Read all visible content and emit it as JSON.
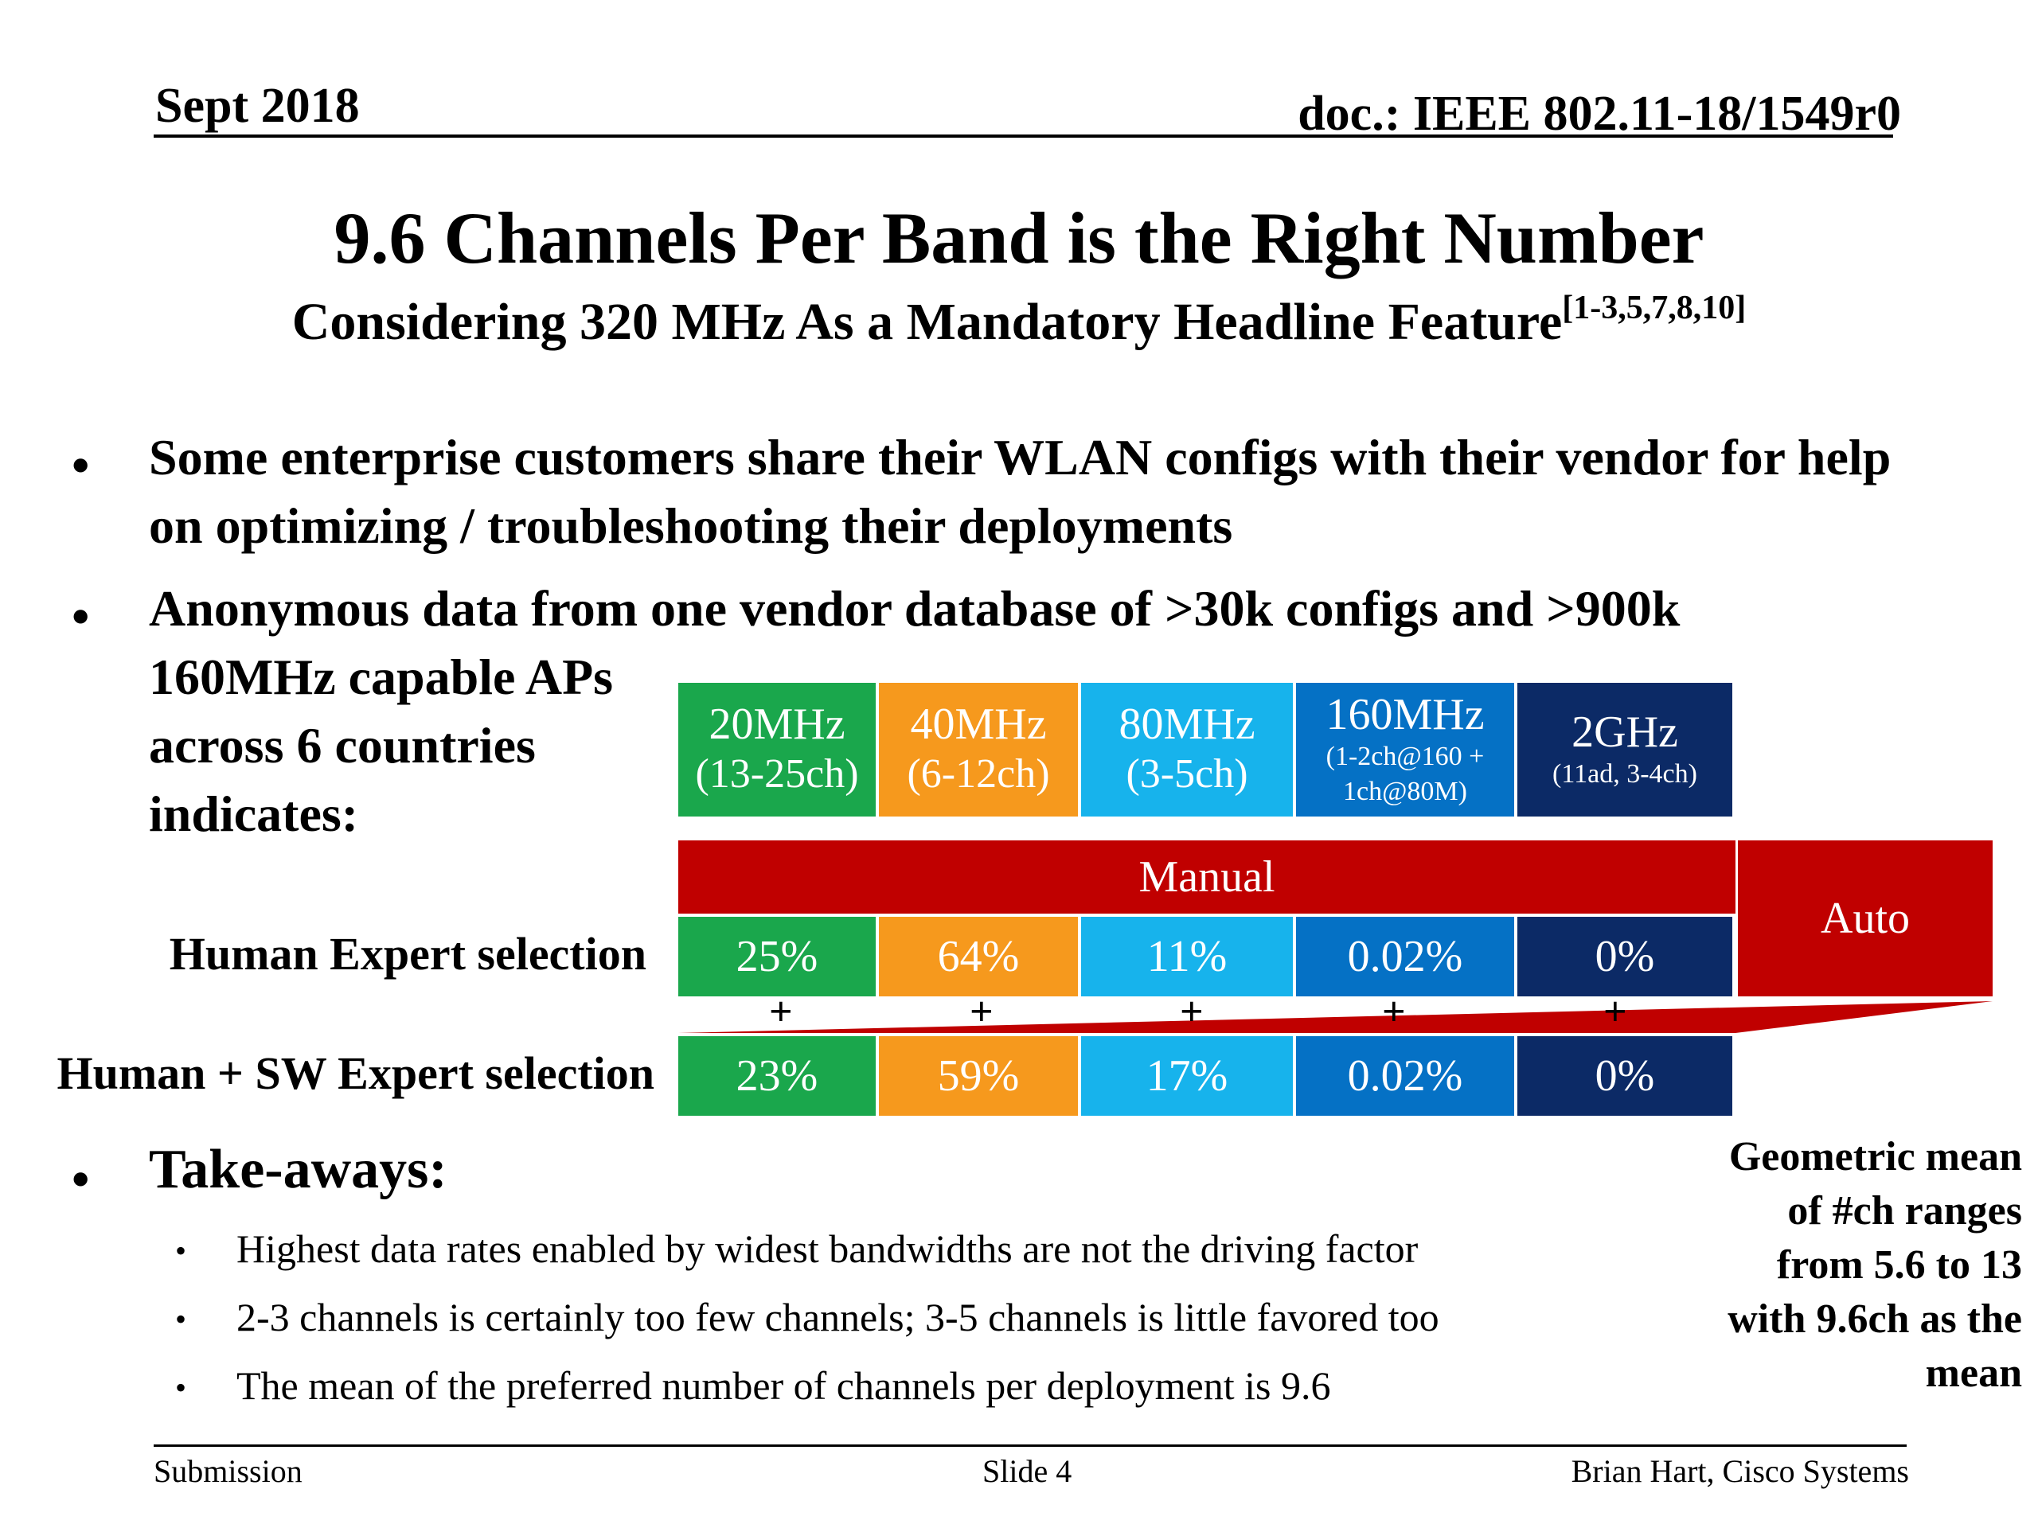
{
  "header": {
    "date": "Sept 2018",
    "doc_id": "doc.: IEEE 802.11-18/1549r0"
  },
  "title": "9.6 Channels Per Band is the Right Number",
  "subtitle": {
    "text": "Considering 320 MHz As a Mandatory Headline Feature",
    "refs": "[1-3,5,7,8,10]"
  },
  "bullets": [
    {
      "text": "Some enterprise customers share their WLAN configs with their vendor for help on optimizing / troubleshooting their deployments"
    },
    {
      "line1": "Anonymous data from one vendor database of >30k configs and >900k",
      "line2": "160MHz capable APs across 6 countries indicates:"
    }
  ],
  "bullet_symbol": "•",
  "table": {
    "headers": [
      {
        "band": "20MHz",
        "detail": "(13-25ch)"
      },
      {
        "band": "40MHz",
        "detail": "(6-12ch)"
      },
      {
        "band": "80MHz",
        "detail": "(3-5ch)"
      },
      {
        "band": "160MHz",
        "detail_a": "(1-2ch@160 +",
        "detail_b": "1ch@80M)"
      },
      {
        "band": "2GHz",
        "detail": "(11ad, 3-4ch)"
      }
    ],
    "manual_label": "Manual",
    "auto_label": "Auto",
    "plus_symbol": "+",
    "rows": [
      {
        "label": "Human Expert selection",
        "values": [
          "25%",
          "64%",
          "11%",
          "0.02%",
          "0%"
        ]
      },
      {
        "label": "Human + SW Expert selection",
        "values": [
          "23%",
          "59%",
          "17%",
          "0.02%",
          "0%"
        ]
      }
    ],
    "colors": {
      "green": "#1aa74c",
      "orange": "#f6991d",
      "light_blue": "#17b3ec",
      "mid_blue": "#0571c5",
      "navy": "#0c2a66",
      "red": "#c00000"
    }
  },
  "takeaways": {
    "heading": "Take-aways:",
    "items": [
      "Highest data rates enabled by widest bandwidths are not the driving factor",
      "2-3 channels is certainly too few channels; 3-5 channels is little favored too",
      "The mean of the preferred number of channels per deployment is 9.6"
    ]
  },
  "geo_note": {
    "l1": "Geometric mean",
    "l2": "of #ch ranges",
    "l3": "from 5.6 to 13",
    "l4": "with 9.6ch as the",
    "l5": "mean"
  },
  "footer": {
    "left": "Submission",
    "center": "Slide 4",
    "right": "Brian Hart, Cisco Systems"
  }
}
